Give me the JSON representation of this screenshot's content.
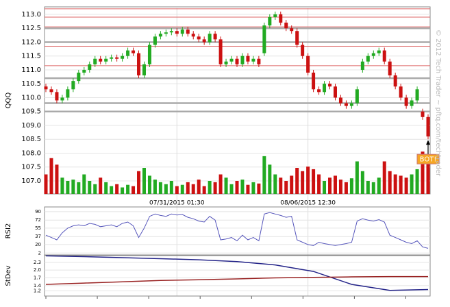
{
  "chart_data": [
    {
      "type": "candlestick",
      "y_label": "QQQ",
      "categories": [
        null,
        null,
        null,
        null,
        null,
        null,
        null,
        null,
        null,
        null,
        null,
        null,
        null,
        null,
        null,
        null,
        null,
        null,
        null,
        null,
        null,
        null,
        null,
        null,
        "07/31/2015 01:30",
        null,
        null,
        null,
        null,
        null,
        null,
        null,
        null,
        null,
        null,
        null,
        null,
        null,
        null,
        null,
        null,
        null,
        null,
        null,
        null,
        null,
        null,
        null,
        "08/06/2015 12:30",
        null,
        null,
        null,
        null,
        null,
        null,
        null,
        null,
        null,
        null,
        null,
        null,
        null,
        null,
        null,
        null,
        null,
        null,
        null,
        null,
        null,
        null
      ],
      "open": [
        110.4,
        110.3,
        110.2,
        109.9,
        110.0,
        110.3,
        110.6,
        110.9,
        111.0,
        111.2,
        111.4,
        111.3,
        111.4,
        111.45,
        111.4,
        111.5,
        111.7,
        111.6,
        110.8,
        111.2,
        111.9,
        112.2,
        112.3,
        112.35,
        112.4,
        112.3,
        112.45,
        112.3,
        112.2,
        112.1,
        112.0,
        112.3,
        112.1,
        111.2,
        111.3,
        111.4,
        111.2,
        111.5,
        111.3,
        111.4,
        111.6,
        112.6,
        112.9,
        113.0,
        112.7,
        112.5,
        112.4,
        111.9,
        111.5,
        110.9,
        110.3,
        110.2,
        110.5,
        110.4,
        110.0,
        109.8,
        109.7,
        109.8,
        111.0,
        111.3,
        111.5,
        111.6,
        111.7,
        111.3,
        110.8,
        110.4,
        110.0,
        109.7,
        109.9,
        109.5,
        109.3
      ],
      "high": [
        110.5,
        110.4,
        110.3,
        110.1,
        110.4,
        110.7,
        111.0,
        111.1,
        111.3,
        111.5,
        111.5,
        111.5,
        111.55,
        111.55,
        111.6,
        111.8,
        111.8,
        111.7,
        111.3,
        112.0,
        112.3,
        112.4,
        112.45,
        112.5,
        112.5,
        112.55,
        112.55,
        112.4,
        112.3,
        112.2,
        112.4,
        112.4,
        112.2,
        111.4,
        111.5,
        111.5,
        111.6,
        111.6,
        111.5,
        111.5,
        112.7,
        113.0,
        113.1,
        113.1,
        112.8,
        112.6,
        112.5,
        112.0,
        111.6,
        111.0,
        110.4,
        110.6,
        110.6,
        110.5,
        110.1,
        109.9,
        109.9,
        110.4,
        111.4,
        111.6,
        111.7,
        111.8,
        111.8,
        111.4,
        110.9,
        110.5,
        110.1,
        110.0,
        110.4,
        109.6,
        109.4
      ],
      "low": [
        110.2,
        110.1,
        109.8,
        109.8,
        109.9,
        110.2,
        110.5,
        110.8,
        110.9,
        111.1,
        111.2,
        111.2,
        111.3,
        111.3,
        111.3,
        111.4,
        111.5,
        110.7,
        110.7,
        111.1,
        111.8,
        112.1,
        112.2,
        112.25,
        112.2,
        112.2,
        112.2,
        112.1,
        112.0,
        111.9,
        111.9,
        112.0,
        111.1,
        111.1,
        111.2,
        111.1,
        111.1,
        111.2,
        111.2,
        111.1,
        111.5,
        112.5,
        112.8,
        112.6,
        112.4,
        112.3,
        111.8,
        111.4,
        110.8,
        110.2,
        110.1,
        110.1,
        110.3,
        109.9,
        109.7,
        109.6,
        109.6,
        109.7,
        110.9,
        111.2,
        111.4,
        111.5,
        111.2,
        110.7,
        110.3,
        109.9,
        109.6,
        109.6,
        109.8,
        109.2,
        108.5
      ],
      "close": [
        110.3,
        110.2,
        109.9,
        110.0,
        110.3,
        110.6,
        110.9,
        111.0,
        111.2,
        111.4,
        111.3,
        111.4,
        111.45,
        111.4,
        111.5,
        111.7,
        111.6,
        110.8,
        111.2,
        111.9,
        112.2,
        112.3,
        112.35,
        112.4,
        112.3,
        112.45,
        112.3,
        112.2,
        112.1,
        112.0,
        112.3,
        112.1,
        111.2,
        111.3,
        111.4,
        111.2,
        111.5,
        111.3,
        111.4,
        111.2,
        112.6,
        112.9,
        113.0,
        112.7,
        112.5,
        112.4,
        111.9,
        111.5,
        110.9,
        110.3,
        110.2,
        110.5,
        110.4,
        110.0,
        109.8,
        109.7,
        109.8,
        110.3,
        111.3,
        111.5,
        111.6,
        111.7,
        111.3,
        110.8,
        110.4,
        110.0,
        109.7,
        109.9,
        110.3,
        109.3,
        108.6
      ],
      "volume": [
        30,
        55,
        45,
        25,
        20,
        22,
        18,
        30,
        20,
        15,
        25,
        18,
        12,
        15,
        10,
        14,
        12,
        35,
        40,
        28,
        22,
        18,
        15,
        20,
        12,
        14,
        18,
        15,
        22,
        12,
        20,
        18,
        30,
        25,
        15,
        20,
        22,
        14,
        18,
        16,
        58,
        45,
        30,
        25,
        20,
        28,
        40,
        35,
        42,
        38,
        30,
        20,
        25,
        28,
        22,
        18,
        24,
        50,
        35,
        20,
        18,
        25,
        50,
        35,
        30,
        28,
        25,
        30,
        38,
        65,
        55
      ],
      "up_color": "#22aa22",
      "down_color": "#cc1111",
      "ylim": [
        106.53,
        113.27
      ],
      "yticks": [
        {
          "value": 107,
          "label": "107.0"
        },
        {
          "value": 107.5,
          "label": "107.5"
        },
        {
          "value": 108,
          "label": "108.0"
        },
        {
          "value": 108.5,
          "label": "108.5"
        },
        {
          "value": 109,
          "label": "109.0"
        },
        {
          "value": 109.5,
          "label": "109.5"
        },
        {
          "value": 110,
          "label": "110.0"
        },
        {
          "value": 110.5,
          "label": "110.5"
        },
        {
          "value": 111,
          "label": "111.0"
        },
        {
          "value": 111.5,
          "label": "111.5"
        },
        {
          "value": 112,
          "label": "112.0"
        },
        {
          "value": 112.5,
          "label": "112.5"
        },
        {
          "value": 113,
          "label": "113.0"
        }
      ],
      "levels": [
        {
          "value": 112.5,
          "color": "#aaaaaa"
        },
        {
          "value": 112.0,
          "color": "#aaaaaa"
        },
        {
          "value": 110.7,
          "color": "#aaaaaa"
        },
        {
          "value": 109.8,
          "color": "#aaaaaa"
        },
        {
          "value": 109.5,
          "color": "#aaaaaa"
        },
        {
          "value": 113.2,
          "color": "#dd6666"
        },
        {
          "value": 112.9,
          "color": "#dd6666"
        },
        {
          "value": 112.55,
          "color": "#dd6666"
        },
        {
          "value": 111.85,
          "color": "#dd6666"
        },
        {
          "value": 111.15,
          "color": "#dd6666"
        }
      ],
      "annotation": "BOT!",
      "watermark": "© 2012 Tech Trader ~ pftq.com/techtrader"
    },
    {
      "type": "line",
      "y_label": "RSI2",
      "color": "#5555bb",
      "values": [
        40,
        35,
        30,
        45,
        55,
        60,
        62,
        60,
        65,
        63,
        58,
        60,
        62,
        58,
        65,
        68,
        60,
        35,
        55,
        80,
        85,
        82,
        80,
        85,
        83,
        84,
        78,
        75,
        70,
        68,
        80,
        72,
        30,
        32,
        35,
        28,
        40,
        30,
        35,
        28,
        85,
        88,
        85,
        82,
        78,
        80,
        30,
        25,
        20,
        18,
        25,
        22,
        20,
        18,
        20,
        22,
        25,
        70,
        75,
        72,
        70,
        73,
        68,
        40,
        35,
        30,
        25,
        22,
        28,
        15,
        12
      ],
      "ylim": [
        -2,
        100
      ],
      "yticks": [
        2,
        20,
        37,
        55,
        72,
        90
      ]
    },
    {
      "type": "line",
      "y_label": "StDev",
      "series": [
        {
          "color": "#222288",
          "values": [
            2.55,
            2.52,
            2.48,
            2.44,
            2.4,
            2.33,
            2.2,
            1.95,
            1.45,
            1.22,
            1.25
          ]
        },
        {
          "color": "#992222",
          "values": [
            1.45,
            1.5,
            1.55,
            1.6,
            1.63,
            1.66,
            1.7,
            1.72,
            1.74,
            1.75,
            1.75
          ]
        }
      ],
      "ylim": [
        1.0,
        2.56
      ],
      "yticks": [
        {
          "value": 1.2,
          "label": "1.2"
        },
        {
          "value": 1.4,
          "label": "1.4"
        },
        {
          "value": 1.7,
          "label": "1.7"
        },
        {
          "value": 2.0,
          "label": "2.0"
        },
        {
          "value": 2.3,
          "label": "2.3"
        }
      ]
    }
  ]
}
